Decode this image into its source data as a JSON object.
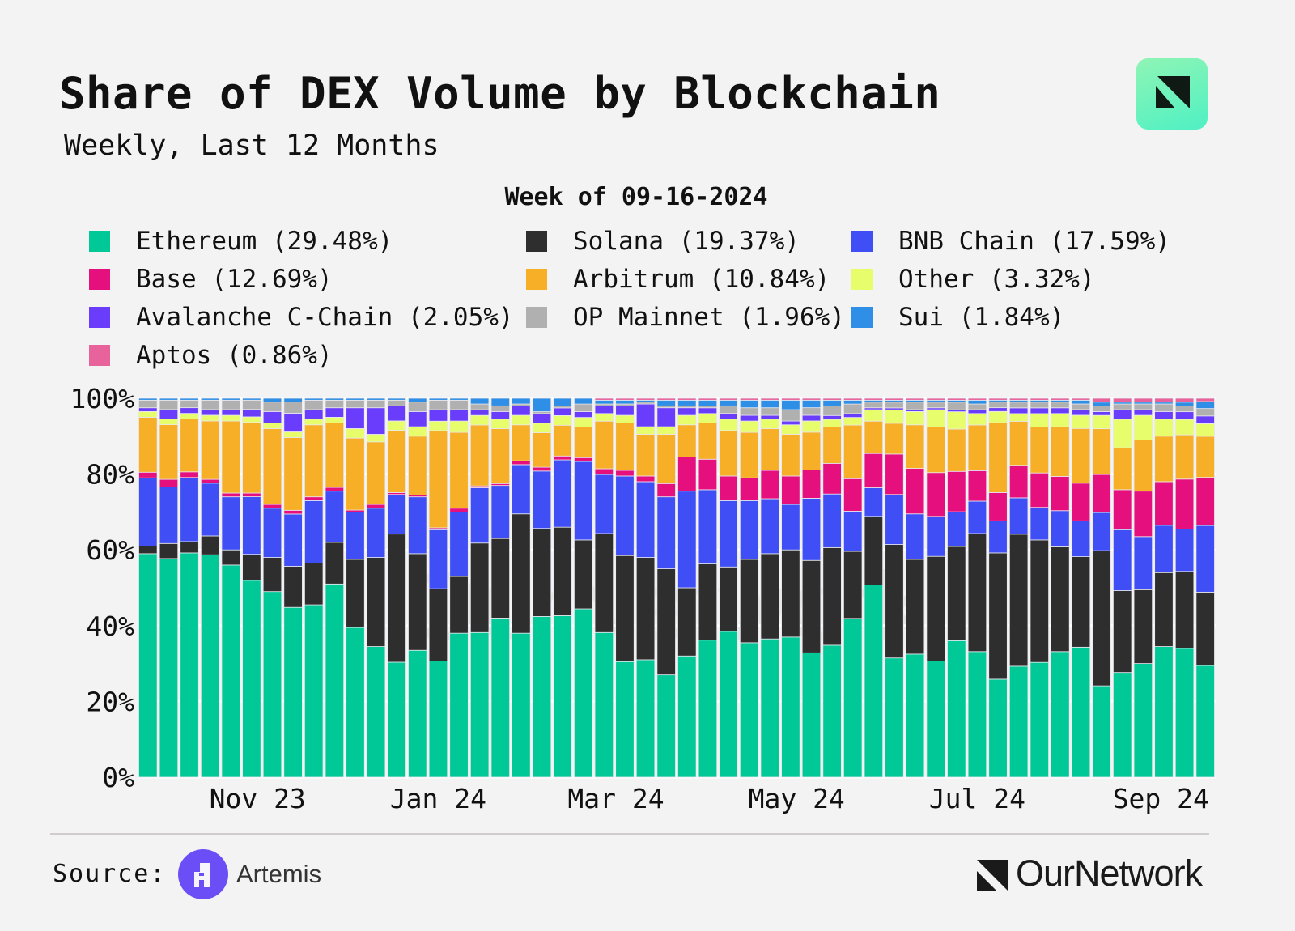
{
  "header": {
    "title": "Share of DEX Volume by Blockchain",
    "subtitle": "Weekly, Last 12 Months",
    "logo_text": "OurNetwork"
  },
  "footer": {
    "source_label": "Source:",
    "source_name": "Artemis",
    "brand": "OurNetwork",
    "watermark": "OurNetwork"
  },
  "colors": {
    "Ethereum": "#00c896",
    "Solana": "#2e2e2e",
    "BNB Chain": "#3f4ff5",
    "Base": "#e5107e",
    "Arbitrum": "#f6af27",
    "Other": "#e8fd6c",
    "Avalanche C-Chain": "#6a3cfb",
    "OP Mainnet": "#b0b0b0",
    "Sui": "#2f8fe6",
    "Aptos": "#e8629b"
  },
  "chart_data": {
    "type": "bar",
    "stacked": true,
    "normalized": true,
    "title": "Share of DEX Volume by Blockchain",
    "subtitle": "Weekly, Last 12 Months",
    "legend_title": "Week of 09-16-2024",
    "last_week": "09-16-2024",
    "legend": [
      {
        "name": "Ethereum",
        "label": "Ethereum (29.48%)"
      },
      {
        "name": "Solana",
        "label": "Solana (19.37%)"
      },
      {
        "name": "BNB Chain",
        "label": "BNB Chain (17.59%)"
      },
      {
        "name": "Base",
        "label": "Base (12.69%)"
      },
      {
        "name": "Arbitrum",
        "label": "Arbitrum (10.84%)"
      },
      {
        "name": "Other",
        "label": "Other (3.32%)"
      },
      {
        "name": "Avalanche C-Chain",
        "label": "Avalanche C-Chain (2.05%)"
      },
      {
        "name": "OP Mainnet",
        "label": "OP Mainnet (1.96%)"
      },
      {
        "name": "Sui",
        "label": "Sui (1.84%)"
      },
      {
        "name": "Aptos",
        "label": "Aptos (0.86%)"
      }
    ],
    "legend_placement": "top",
    "ylim": [
      0,
      100
    ],
    "yticks": [
      "0%",
      "20%",
      "40%",
      "60%",
      "80%",
      "100%"
    ],
    "xticks": [
      "Nov 23",
      "Jan 24",
      "Mar 24",
      "May 24",
      "Jul 24",
      "Sep 24"
    ],
    "grid": true,
    "series": [
      {
        "name": "Ethereum",
        "values": [
          59,
          58,
          59.5,
          59,
          56,
          53,
          49,
          45.5,
          45.5,
          51,
          39.5,
          34.5,
          30.5,
          33.5,
          30.5,
          38,
          38,
          42,
          38,
          42,
          42,
          44,
          38,
          30.5,
          31,
          27,
          32,
          36,
          38.5,
          35.5,
          36.5,
          37,
          33,
          34.5,
          41.5,
          50.5,
          31,
          32.5,
          30.5,
          35.5,
          33,
          26,
          29,
          30,
          33,
          34.5,
          24,
          27.5,
          30,
          34.5,
          33.5,
          29.48
        ]
      },
      {
        "name": "Solana",
        "values": [
          2,
          4,
          3,
          5,
          4,
          7,
          9,
          11,
          11,
          11,
          18,
          23.5,
          34,
          25.5,
          19,
          15,
          23.5,
          21,
          31.5,
          23,
          23,
          18,
          26,
          28,
          27,
          28,
          18,
          20,
          17,
          22,
          22.5,
          23,
          24.5,
          25.5,
          17.5,
          18,
          29.5,
          25,
          27.5,
          24.5,
          31,
          33.5,
          34.5,
          32,
          27.5,
          24,
          35.5,
          21.5,
          19.5,
          19.5,
          20,
          19.37
        ]
      },
      {
        "name": "BNB Chain",
        "values": [
          18,
          15,
          17,
          14,
          14,
          15.5,
          13,
          14,
          16.5,
          13.5,
          12.5,
          13,
          10.5,
          15,
          15.5,
          17,
          14.5,
          14,
          13,
          15,
          17.5,
          20.5,
          15.5,
          21,
          20,
          19,
          25.5,
          19.5,
          17.5,
          15.5,
          14.5,
          12,
          16.5,
          14,
          10.5,
          7.5,
          13,
          12,
          10.5,
          9,
          8.5,
          8.5,
          9.5,
          8.5,
          9.5,
          9.5,
          10,
          16,
          14,
          12.5,
          11,
          17.59
        ]
      },
      {
        "name": "Base",
        "values": [
          1.5,
          2,
          1.5,
          1,
          1,
          1,
          1,
          1,
          1,
          1,
          0.5,
          1,
          0.5,
          0.5,
          0.5,
          1,
          0.5,
          0.5,
          1,
          1,
          1,
          1,
          1.5,
          1.5,
          1.5,
          3.5,
          9,
          8,
          6.5,
          6,
          7.5,
          7.5,
          7.5,
          8,
          8.5,
          9,
          10.5,
          12,
          11.5,
          10.5,
          8,
          7.5,
          8.5,
          9,
          9,
          10,
          10,
          10.5,
          12,
          11.5,
          13,
          12.69
        ]
      },
      {
        "name": "Arbitrum",
        "values": [
          14.5,
          14.5,
          14,
          15.5,
          19,
          19,
          20,
          19.5,
          19,
          17,
          19,
          16.5,
          16.5,
          15.5,
          25.5,
          20,
          16,
          14.5,
          9.5,
          9,
          8,
          8,
          12.5,
          12.5,
          11,
          13,
          8.5,
          9.5,
          12,
          12,
          11,
          11,
          10,
          9.5,
          14,
          8.5,
          8,
          11.5,
          12,
          11,
          12,
          18.5,
          11.5,
          12,
          13,
          14.5,
          12,
          11,
          13.5,
          12,
          11.5,
          10.84
        ]
      },
      {
        "name": "Other",
        "values": [
          1.5,
          1.5,
          1.5,
          1.5,
          1.5,
          1.5,
          1.5,
          1.5,
          1.5,
          1.5,
          2.5,
          2,
          2.5,
          2.5,
          2.5,
          3,
          2.5,
          2.5,
          2.5,
          2.5,
          2.5,
          2.5,
          2,
          2,
          2,
          2,
          2.5,
          2.5,
          3,
          3,
          2.5,
          2.5,
          3,
          2,
          2,
          3,
          3.5,
          3.5,
          4.5,
          4.5,
          3,
          3,
          2,
          3.5,
          3.5,
          3.5,
          3.5,
          7.5,
          6.5,
          4.5,
          4,
          3.32
        ]
      },
      {
        "name": "Avalanche C-Chain",
        "values": [
          1,
          2.5,
          1.5,
          1.5,
          1.5,
          2,
          3,
          5,
          2.5,
          2.5,
          5.5,
          7,
          4,
          4,
          3,
          3,
          1.5,
          2,
          2.5,
          2.5,
          2,
          1.5,
          2,
          2.5,
          6,
          5,
          2,
          1.5,
          1.5,
          1.5,
          1,
          1,
          1.5,
          1,
          1,
          0.5,
          0.5,
          0.5,
          0.5,
          0.5,
          1,
          1,
          1.5,
          1.5,
          1.5,
          1.5,
          1,
          2.5,
          1.5,
          2,
          2,
          2.05
        ]
      },
      {
        "name": "OP Mainnet",
        "values": [
          2,
          2.5,
          2,
          2.5,
          2.5,
          2.5,
          2.5,
          3,
          2.5,
          2,
          2,
          2,
          1.5,
          2.5,
          2.5,
          2.5,
          1.5,
          1.5,
          0.5,
          0.5,
          0.5,
          2,
          0.5,
          0.5,
          0.5,
          0.5,
          0.5,
          0.5,
          2,
          2,
          2,
          3,
          2,
          2.5,
          2.5,
          1.5,
          1.5,
          2,
          1.5,
          2,
          1.5,
          1.5,
          1.5,
          1.5,
          1.5,
          1.5,
          1.5,
          1.5,
          1.5,
          2,
          1.5,
          1.96
        ]
      },
      {
        "name": "Sui",
        "values": [
          0.5,
          0.5,
          0.5,
          0.5,
          0.5,
          0.5,
          1,
          1,
          0.5,
          0.5,
          0.5,
          0.5,
          0.5,
          1,
          0.5,
          0.5,
          1.5,
          2,
          1.5,
          3.5,
          2,
          1.5,
          1,
          1,
          0.5,
          1.5,
          1.5,
          1.5,
          1.5,
          2,
          2,
          2.5,
          2,
          1.5,
          1,
          0.5,
          0.5,
          0.5,
          0.5,
          0.5,
          1,
          0.5,
          0.5,
          0.5,
          0.5,
          1,
          1,
          0.5,
          0.5,
          0.5,
          1,
          1.84
        ]
      },
      {
        "name": "Aptos",
        "values": [
          0,
          0,
          0,
          0,
          0,
          0,
          0,
          0,
          0,
          0,
          0,
          0,
          0,
          0,
          0,
          0,
          0,
          0,
          0,
          0,
          0,
          0,
          0.5,
          0.5,
          0.5,
          0.5,
          0.5,
          0.5,
          0.5,
          0.5,
          0.5,
          0.5,
          0.5,
          0.5,
          0.5,
          0.5,
          0.5,
          0.5,
          0.5,
          0.5,
          0.5,
          0.5,
          0.5,
          0.5,
          0.5,
          0.5,
          1,
          1,
          1,
          1,
          1,
          0.86
        ]
      }
    ]
  }
}
